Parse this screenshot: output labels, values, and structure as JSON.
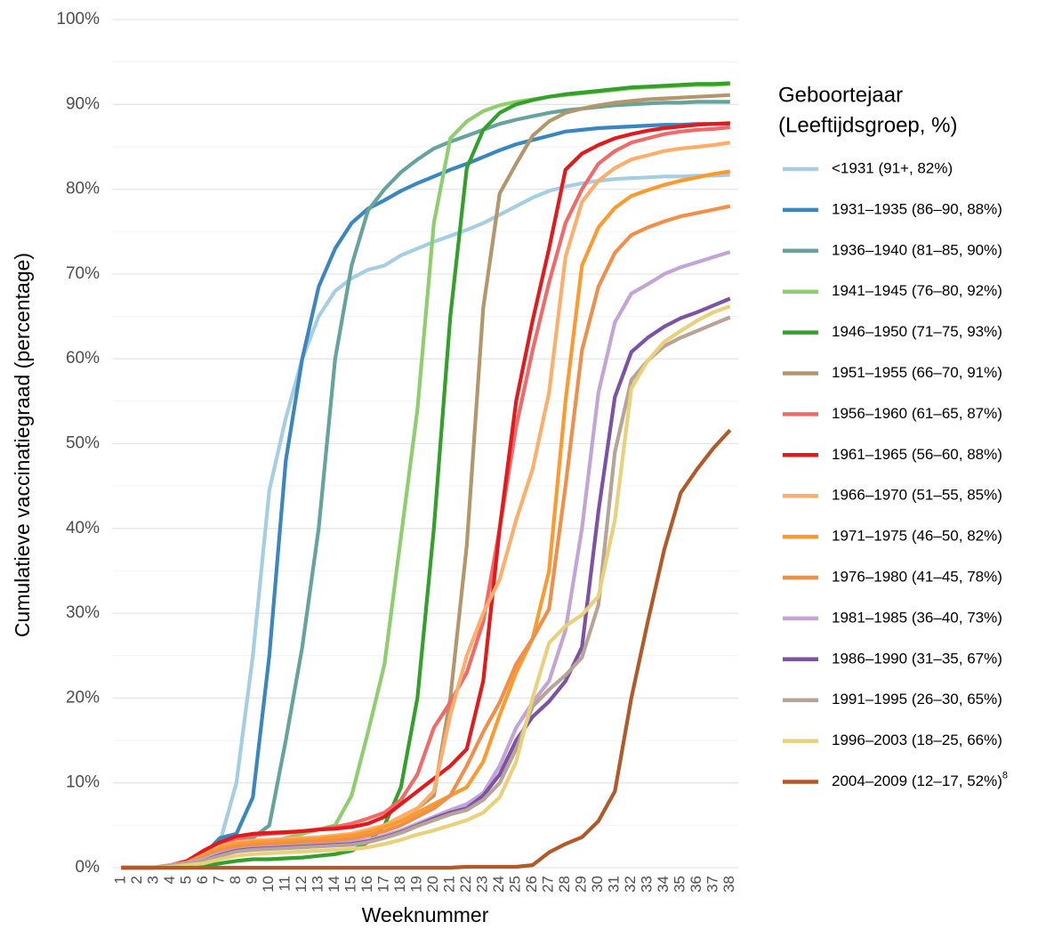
{
  "chart_data": {
    "type": "line",
    "x_label": "Weeknummer",
    "y_label": "Cumulatieve vaccinatiegraad (percentage)",
    "legend_title": [
      "Geboortejaar",
      "(Leeftijdsgroep, %)"
    ],
    "legend_position": "right",
    "grid": true,
    "x": [
      1,
      2,
      3,
      4,
      5,
      6,
      7,
      8,
      9,
      10,
      11,
      12,
      13,
      14,
      15,
      16,
      17,
      18,
      19,
      20,
      21,
      22,
      23,
      24,
      25,
      26,
      27,
      28,
      29,
      30,
      31,
      32,
      33,
      34,
      35,
      36,
      37,
      38
    ],
    "xlim": [
      0.5,
      38.5
    ],
    "xticks": [
      1,
      2,
      3,
      4,
      5,
      6,
      7,
      8,
      9,
      10,
      11,
      12,
      13,
      14,
      15,
      16,
      17,
      18,
      19,
      20,
      21,
      22,
      23,
      24,
      25,
      26,
      27,
      28,
      29,
      30,
      31,
      32,
      33,
      34,
      35,
      36,
      37,
      38
    ],
    "ylim": [
      0,
      100
    ],
    "yticks": [
      {
        "value": 0,
        "label": "0%"
      },
      {
        "value": 10,
        "label": "10%"
      },
      {
        "value": 20,
        "label": "20%"
      },
      {
        "value": 30,
        "label": "30%"
      },
      {
        "value": 40,
        "label": "40%"
      },
      {
        "value": 50,
        "label": "50%"
      },
      {
        "value": 60,
        "label": "60%"
      },
      {
        "value": 70,
        "label": "70%"
      },
      {
        "value": 80,
        "label": "80%"
      },
      {
        "value": 90,
        "label": "90%"
      },
      {
        "value": 100,
        "label": "100%"
      }
    ],
    "minor_yticks": [
      5,
      15,
      25,
      35,
      45,
      55,
      65,
      75,
      85,
      95
    ],
    "series": [
      {
        "name": "<1931 (91+, 82%)",
        "color": "#a6cee3",
        "values": [
          0,
          0,
          0,
          0.3,
          0.5,
          1,
          3,
          10,
          25,
          44.5,
          53,
          60,
          65,
          68,
          69.5,
          70.5,
          71,
          72.2,
          73,
          73.8,
          74.5,
          75.2,
          76,
          77,
          78,
          79,
          79.8,
          80.3,
          80.7,
          81,
          81.2,
          81.3,
          81.4,
          81.5,
          81.5,
          81.6,
          81.6,
          81.7
        ]
      },
      {
        "name": "1931–1935 (86–90, 88%)",
        "color": "#3a87c0",
        "values": [
          0,
          0,
          0,
          0.3,
          0.6,
          1.5,
          3.5,
          4,
          8.3,
          25,
          48,
          60,
          68.5,
          73,
          76,
          77.7,
          78.7,
          79.8,
          80.7,
          81.5,
          82.3,
          83,
          83.8,
          84.6,
          85.3,
          85.8,
          86.3,
          86.8,
          87,
          87.2,
          87.3,
          87.4,
          87.5,
          87.6,
          87.6,
          87.7,
          87.7,
          87.7
        ]
      },
      {
        "name": "1936–1940 (81–85, 90%)",
        "color": "#66a39d",
        "values": [
          0,
          0,
          0,
          0.3,
          0.6,
          1.2,
          2,
          3,
          3.5,
          5,
          15,
          26,
          40,
          60,
          71,
          77.5,
          80,
          82,
          83.5,
          84.8,
          85.6,
          86.3,
          87,
          87.7,
          88.2,
          88.6,
          89,
          89.3,
          89.5,
          89.7,
          89.9,
          90,
          90.1,
          90.2,
          90.2,
          90.3,
          90.3,
          90.3
        ]
      },
      {
        "name": "1941–1945 (76–80, 92%)",
        "color": "#8fce6e",
        "values": [
          0,
          0,
          0,
          0.2,
          0.5,
          1,
          1.5,
          2,
          2.5,
          3,
          3.5,
          4,
          4.5,
          5,
          8.5,
          16,
          24,
          39,
          54,
          76,
          86,
          88,
          89.2,
          89.9,
          90.3,
          90.6,
          90.9,
          91.1,
          91.3,
          91.5,
          91.7,
          91.9,
          92,
          92.1,
          92.2,
          92.3,
          92.3,
          92.4
        ]
      },
      {
        "name": "1946–1950 (71–75, 93%)",
        "color": "#33a02c",
        "values": [
          0,
          0,
          0,
          0,
          0,
          0.2,
          0.5,
          0.8,
          1,
          1,
          1.1,
          1.2,
          1.4,
          1.6,
          2,
          3,
          5,
          9.5,
          20,
          40,
          65,
          82.5,
          87,
          89,
          90,
          90.5,
          90.9,
          91.2,
          91.4,
          91.6,
          91.8,
          92,
          92.1,
          92.2,
          92.3,
          92.4,
          92.4,
          92.5
        ]
      },
      {
        "name": "1951–1955 (66–70, 91%)",
        "color": "#b3976b",
        "values": [
          0,
          0,
          0,
          0.3,
          0.6,
          1.2,
          1.8,
          2.2,
          2.5,
          2.7,
          2.8,
          2.9,
          3,
          3.2,
          3.5,
          4,
          5,
          6,
          7,
          8.5,
          20,
          38,
          66,
          79.5,
          83,
          86.3,
          88,
          89,
          89.5,
          89.9,
          90.2,
          90.4,
          90.6,
          90.7,
          90.8,
          90.9,
          91,
          91.1
        ]
      },
      {
        "name": "1956–1960 (61–65, 87%)",
        "color": "#f06a6a",
        "values": [
          0,
          0,
          0,
          0.3,
          0.7,
          1.8,
          2.8,
          3.4,
          3.8,
          4,
          4.1,
          4.3,
          4.5,
          4.8,
          5.2,
          5.8,
          6.5,
          8,
          11,
          16.5,
          19.5,
          23,
          29,
          40,
          52,
          61,
          69,
          76,
          80,
          83,
          84.5,
          85.5,
          86,
          86.5,
          86.8,
          87,
          87.1,
          87.3
        ]
      },
      {
        "name": "1961–1965 (56–60, 88%)",
        "color": "#e31a1c",
        "values": [
          0,
          0,
          0,
          0.3,
          0.8,
          2,
          3,
          3.7,
          4,
          4.1,
          4.2,
          4.3,
          4.5,
          4.6,
          4.8,
          5.2,
          6,
          7.5,
          9,
          10.5,
          12,
          14,
          22,
          40,
          55,
          64.5,
          73,
          82.3,
          84.2,
          85.2,
          86,
          86.5,
          86.9,
          87.2,
          87.4,
          87.6,
          87.7,
          87.8
        ]
      },
      {
        "name": "1966–1970 (51–55, 85%)",
        "color": "#fdae6b",
        "values": [
          0,
          0,
          0,
          0.3,
          0.6,
          1.5,
          2.5,
          3,
          3.2,
          3.3,
          3.4,
          3.5,
          3.6,
          3.8,
          4,
          4.5,
          5,
          6,
          7,
          9,
          18,
          25,
          30,
          34,
          41,
          47,
          56,
          72,
          78.5,
          81,
          82.5,
          83.5,
          84,
          84.5,
          84.8,
          85,
          85.2,
          85.5
        ]
      },
      {
        "name": "1971–1975 (46–50, 82%)",
        "color": "#fd9a2e",
        "values": [
          0,
          0,
          0,
          0.3,
          0.6,
          1.4,
          2.3,
          2.8,
          3,
          3.1,
          3.2,
          3.3,
          3.4,
          3.6,
          3.8,
          4.2,
          4.8,
          5.5,
          6.5,
          7.5,
          8.5,
          9.5,
          12.5,
          18,
          23,
          27,
          35,
          55,
          71,
          75.5,
          77.8,
          79.2,
          79.9,
          80.5,
          81,
          81.4,
          81.8,
          82.1
        ]
      },
      {
        "name": "1976–1980 (41–45, 78%)",
        "color": "#ef8f4a",
        "values": [
          0,
          0,
          0,
          0.3,
          0.6,
          1.2,
          2,
          2.5,
          2.7,
          2.8,
          2.9,
          3,
          3.1,
          3.2,
          3.4,
          3.8,
          4.3,
          5,
          6,
          7,
          8.5,
          12,
          16,
          19.5,
          24,
          27,
          30.5,
          45,
          61,
          68.5,
          72.5,
          74.6,
          75.5,
          76.2,
          76.8,
          77.2,
          77.6,
          78
        ]
      },
      {
        "name": "1981–1985 (36–40, 73%)",
        "color": "#c2a5d6",
        "values": [
          0,
          0,
          0,
          0.3,
          0.5,
          1,
          1.7,
          2.1,
          2.3,
          2.4,
          2.5,
          2.6,
          2.7,
          2.8,
          3,
          3.3,
          3.8,
          4.4,
          5.2,
          6,
          6.8,
          7.5,
          8.8,
          12,
          16.5,
          19.5,
          22,
          28,
          40,
          56,
          64.3,
          67.7,
          68.8,
          70,
          70.8,
          71.4,
          72,
          72.6
        ]
      },
      {
        "name": "1986–1990 (31–35, 67%)",
        "color": "#7b52a6",
        "values": [
          0,
          0,
          0,
          0.2,
          0.4,
          0.8,
          1.5,
          2,
          2.2,
          2.3,
          2.4,
          2.5,
          2.6,
          2.7,
          2.8,
          3.1,
          3.6,
          4.2,
          5,
          5.8,
          6.5,
          7,
          8.5,
          11,
          15,
          17.8,
          19.6,
          22,
          26,
          42,
          55.5,
          60.8,
          62.5,
          63.8,
          64.8,
          65.5,
          66.3,
          67.1
        ]
      },
      {
        "name": "1991–1995 (26–30, 65%)",
        "color": "#b8a496",
        "values": [
          0,
          0,
          0,
          0.2,
          0.4,
          0.8,
          1.4,
          1.9,
          2.1,
          2.2,
          2.3,
          2.4,
          2.5,
          2.6,
          2.7,
          3,
          3.5,
          4.1,
          4.9,
          5.6,
          6.3,
          6.8,
          8,
          10,
          14,
          19,
          21,
          22.7,
          24.8,
          31,
          49,
          57.5,
          59.8,
          61.5,
          62.5,
          63.3,
          64.1,
          64.9
        ]
      },
      {
        "name": "1996–2003 (18–25, 66%)",
        "color": "#e8d17a",
        "values": [
          0,
          0,
          0,
          0.1,
          0.3,
          0.5,
          1,
          1.4,
          1.6,
          1.7,
          1.8,
          1.9,
          2,
          2.1,
          2.2,
          2.4,
          2.8,
          3.3,
          3.9,
          4.4,
          5,
          5.6,
          6.5,
          8.3,
          12.5,
          20,
          26.5,
          28.5,
          29.8,
          32,
          41,
          56.5,
          59.8,
          62,
          63.3,
          64.5,
          65.5,
          66.2
        ]
      },
      {
        "name": "2004–2009 (12–17, 52%)",
        "legend_superscript": "8",
        "color": "#b15928",
        "values": [
          0,
          0,
          0,
          0,
          0,
          0,
          0,
          0,
          0,
          0,
          0,
          0,
          0,
          0,
          0,
          0,
          0,
          0,
          0,
          0,
          0,
          0.1,
          0.1,
          0.1,
          0.1,
          0.3,
          1.8,
          2.8,
          3.6,
          5.5,
          9,
          20,
          29,
          37.5,
          44.2,
          47,
          49.5,
          51.6
        ]
      }
    ]
  }
}
